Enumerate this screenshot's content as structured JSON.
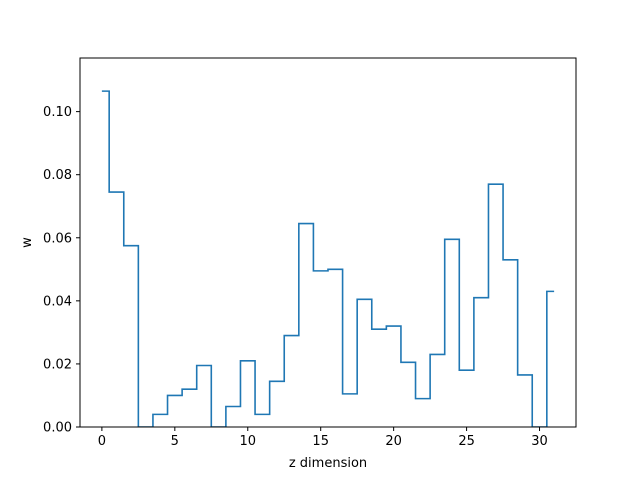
{
  "chart_data": {
    "type": "line",
    "drawstyle": "steps-mid",
    "title": "",
    "xlabel": "z dimension",
    "ylabel": "w",
    "xlim": [
      -1.5,
      32.5
    ],
    "ylim": [
      0,
      0.117
    ],
    "xticks": [
      0,
      5,
      10,
      15,
      20,
      25,
      30
    ],
    "yticks": [
      0.0,
      0.02,
      0.04,
      0.06,
      0.08,
      0.1
    ],
    "ytick_labels": [
      "0.00",
      "0.02",
      "0.04",
      "0.06",
      "0.08",
      "0.10"
    ],
    "grid": false,
    "line_color": "#1f77b4",
    "series": [
      {
        "x": [
          0,
          1,
          2,
          3,
          4,
          5,
          6,
          7,
          8,
          9,
          10,
          11,
          12,
          13,
          14,
          15,
          16,
          17,
          18,
          19,
          20,
          21,
          22,
          23,
          24,
          25,
          26,
          27,
          28,
          29,
          30,
          31
        ],
        "values": [
          0.1065,
          0.0745,
          0.0575,
          0.0,
          0.004,
          0.01,
          0.012,
          0.0195,
          0.0,
          0.0065,
          0.021,
          0.004,
          0.0145,
          0.029,
          0.0645,
          0.0495,
          0.05,
          0.0105,
          0.0405,
          0.031,
          0.032,
          0.0205,
          0.009,
          0.023,
          0.0595,
          0.018,
          0.041,
          0.077,
          0.053,
          0.0165,
          0.0,
          0.043
        ]
      }
    ]
  }
}
